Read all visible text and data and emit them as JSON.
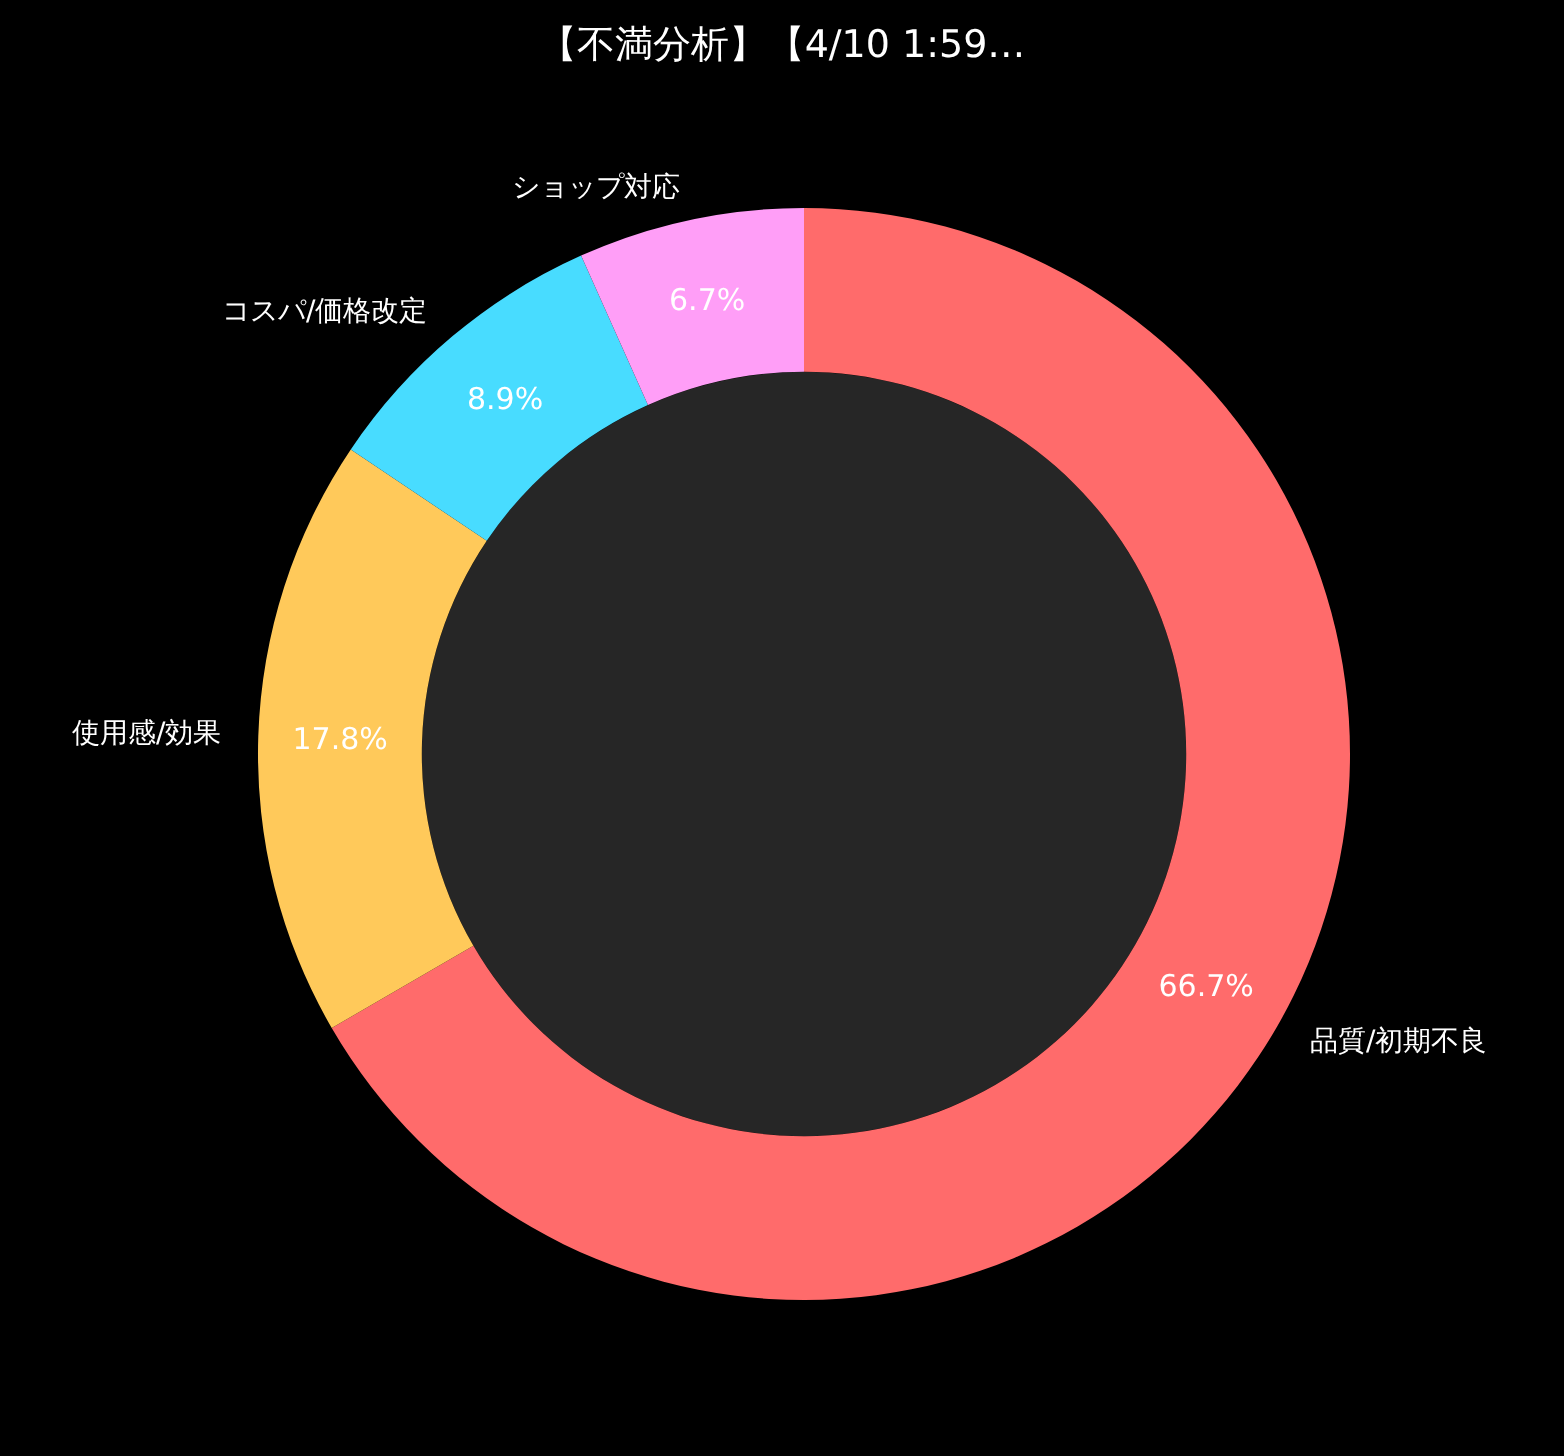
{
  "chart_data": {
    "type": "donut",
    "title": "【不満分析】【4/10 1:59…",
    "categories": [
      "品質/初期不良",
      "使用感/効果",
      "コスパ/価格改定",
      "ショップ対応"
    ],
    "values": [
      66.7,
      17.8,
      8.9,
      6.7
    ],
    "colors": [
      "#ff6b6b",
      "#ffc95a",
      "#48dcff",
      "#ff9ef7"
    ],
    "value_labels": [
      "66.7%",
      "17.8%",
      "8.9%",
      "6.7%"
    ],
    "legend": false
  }
}
